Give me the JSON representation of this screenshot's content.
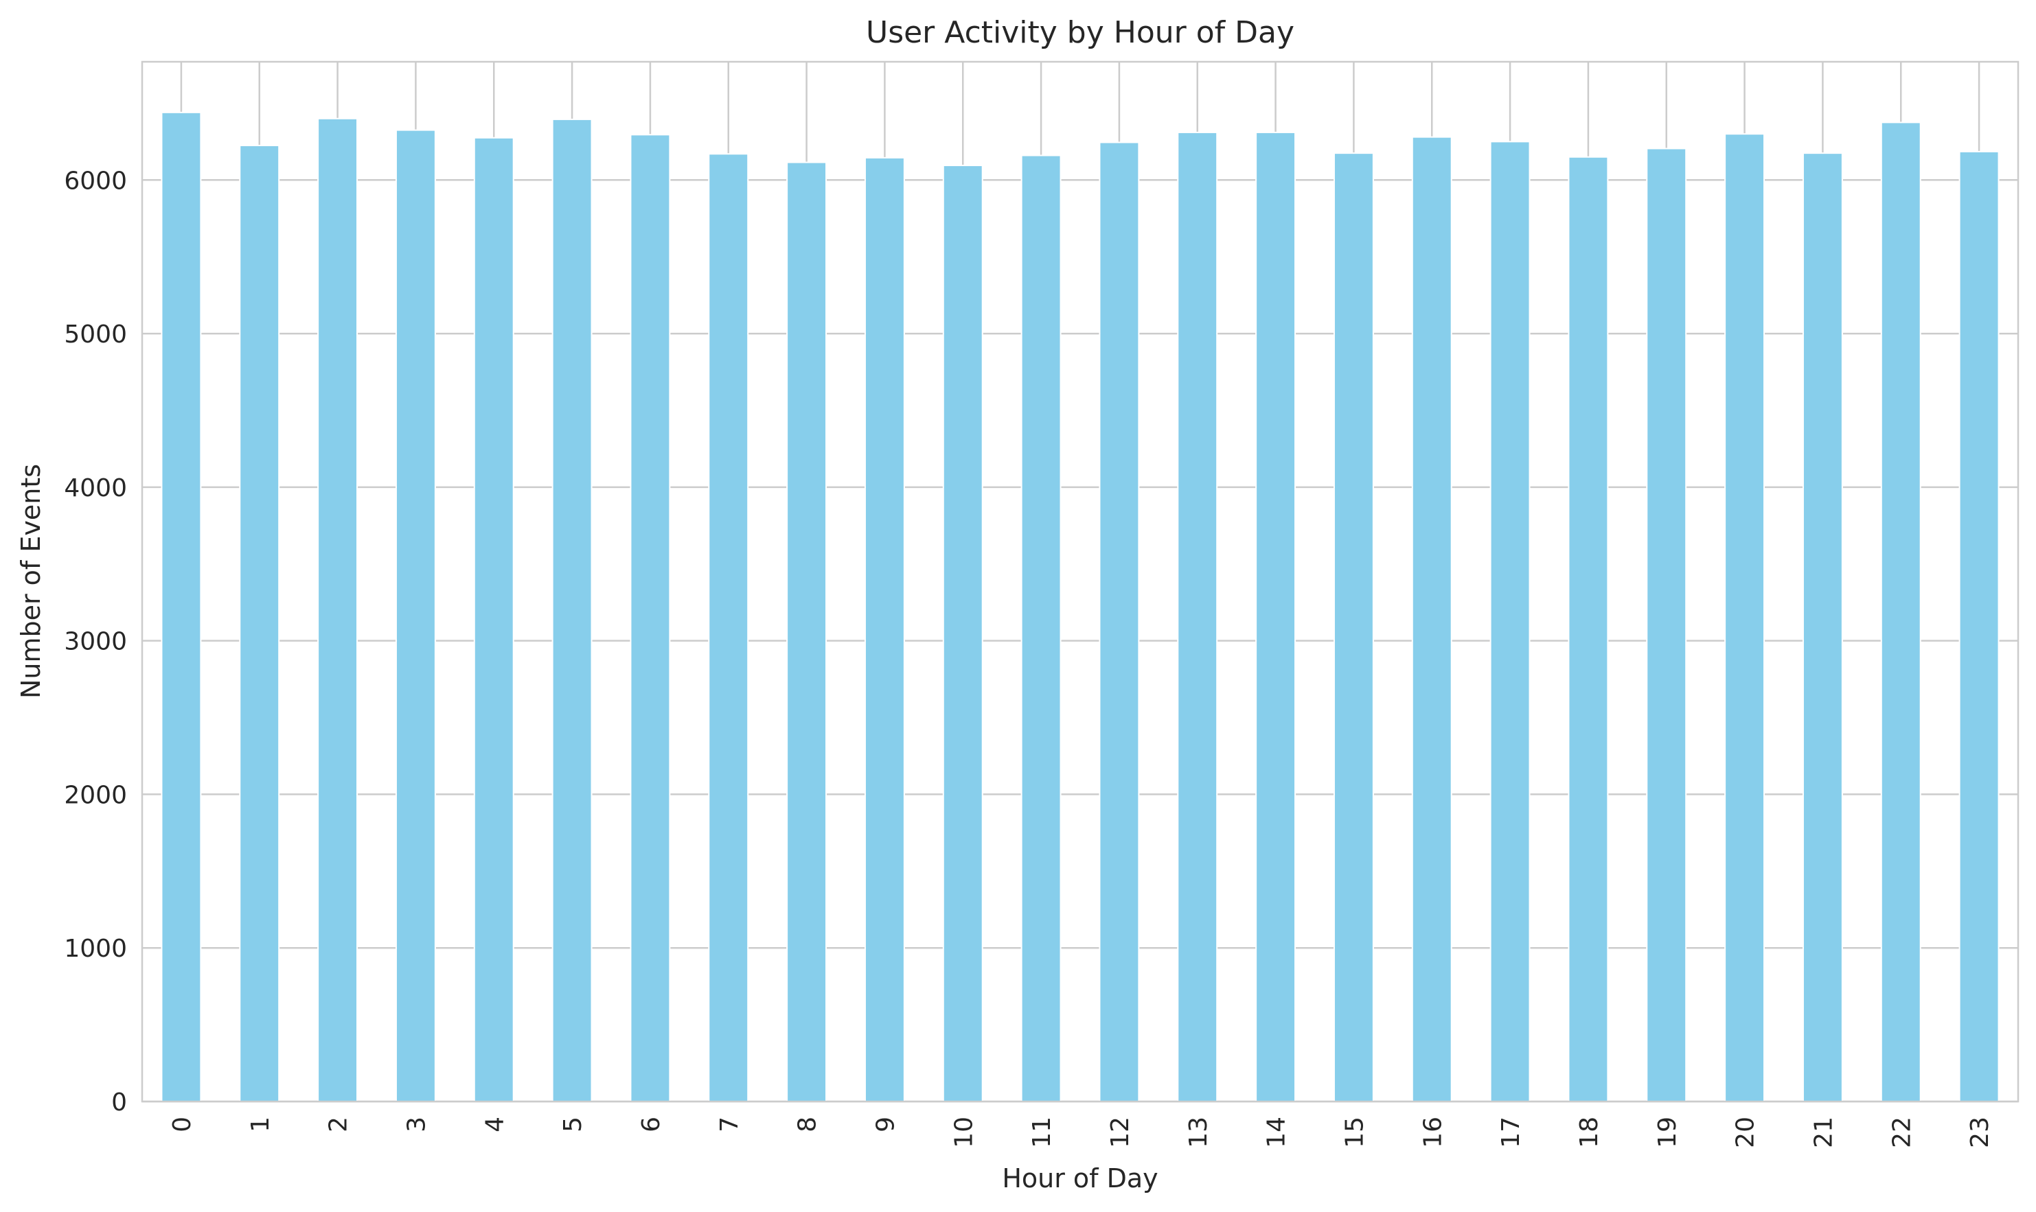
{
  "chart_data": {
    "type": "bar",
    "title": "User Activity by Hour of Day",
    "xlabel": "Hour of Day",
    "ylabel": "Number of Events",
    "categories": [
      "0",
      "1",
      "2",
      "3",
      "4",
      "5",
      "6",
      "7",
      "8",
      "9",
      "10",
      "11",
      "12",
      "13",
      "14",
      "15",
      "16",
      "17",
      "18",
      "19",
      "20",
      "21",
      "22",
      "23"
    ],
    "values": [
      6440,
      6225,
      6400,
      6325,
      6275,
      6395,
      6295,
      6170,
      6115,
      6145,
      6095,
      6160,
      6245,
      6310,
      6310,
      6175,
      6280,
      6250,
      6150,
      6205,
      6300,
      6175,
      6375,
      6185
    ],
    "ylim": [
      0,
      6770
    ],
    "yticks": [
      0,
      1000,
      2000,
      3000,
      4000,
      5000,
      6000
    ],
    "grid": true,
    "bar_color": "#87ceeb",
    "grid_color": "#cccccc",
    "tick_label_rotation_x": "vertical"
  }
}
